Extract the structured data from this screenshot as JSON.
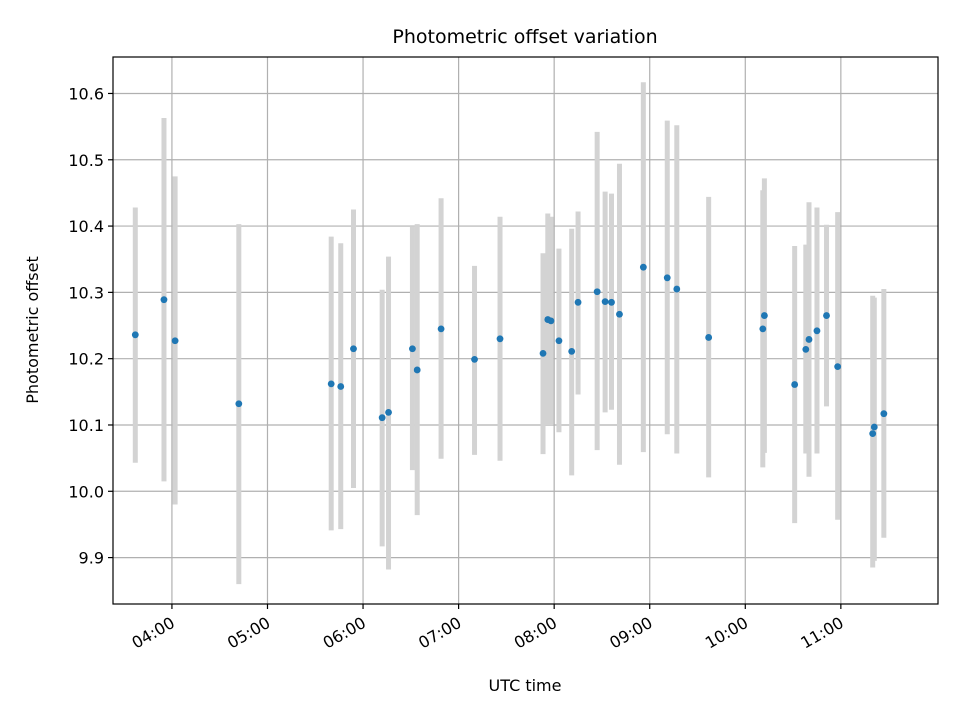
{
  "chart_data": {
    "type": "scatter",
    "title": "Photometric offset variation",
    "xlabel": "UTC time",
    "ylabel": "Photometric offset",
    "x_axis": "time",
    "xlim": [
      "03:23",
      "12:01"
    ],
    "ylim": [
      9.83,
      10.655
    ],
    "grid": true,
    "x_ticks": [
      "04:00",
      "05:00",
      "06:00",
      "07:00",
      "08:00",
      "09:00",
      "10:00",
      "11:00"
    ],
    "y_ticks": [
      "9.9",
      "10.0",
      "10.1",
      "10.2",
      "10.3",
      "10.4",
      "10.5",
      "10.6"
    ],
    "colors": {
      "points": "#1f77b4",
      "error_bars": "#d3d3d3",
      "grid": "#b0b0b0"
    },
    "series": [
      {
        "points": [
          {
            "x": "03:37",
            "y": 10.236,
            "yerr_low": 10.043,
            "yerr_high": 10.428
          },
          {
            "x": "03:55",
            "y": 10.289,
            "yerr_low": 10.015,
            "yerr_high": 10.563
          },
          {
            "x": "04:02",
            "y": 10.227,
            "yerr_low": 9.98,
            "yerr_high": 10.475
          },
          {
            "x": "04:42",
            "y": 10.132,
            "yerr_low": 9.86,
            "yerr_high": 10.403
          },
          {
            "x": "05:40",
            "y": 10.162,
            "yerr_low": 9.941,
            "yerr_high": 10.384
          },
          {
            "x": "05:46",
            "y": 10.158,
            "yerr_low": 9.943,
            "yerr_high": 10.374
          },
          {
            "x": "05:54",
            "y": 10.215,
            "yerr_low": 10.005,
            "yerr_high": 10.425
          },
          {
            "x": "06:12",
            "y": 10.111,
            "yerr_low": 9.917,
            "yerr_high": 10.304
          },
          {
            "x": "06:16",
            "y": 10.119,
            "yerr_low": 9.882,
            "yerr_high": 10.354
          },
          {
            "x": "06:31",
            "y": 10.215,
            "yerr_low": 10.032,
            "yerr_high": 10.4
          },
          {
            "x": "06:34",
            "y": 10.183,
            "yerr_low": 9.964,
            "yerr_high": 10.403
          },
          {
            "x": "06:49",
            "y": 10.245,
            "yerr_low": 10.049,
            "yerr_high": 10.442
          },
          {
            "x": "07:10",
            "y": 10.199,
            "yerr_low": 10.055,
            "yerr_high": 10.34
          },
          {
            "x": "07:26",
            "y": 10.23,
            "yerr_low": 10.046,
            "yerr_high": 10.414
          },
          {
            "x": "07:53",
            "y": 10.208,
            "yerr_low": 10.056,
            "yerr_high": 10.359
          },
          {
            "x": "07:56",
            "y": 10.259,
            "yerr_low": 10.1,
            "yerr_high": 10.419
          },
          {
            "x": "07:58",
            "y": 10.257,
            "yerr_low": 10.1,
            "yerr_high": 10.414
          },
          {
            "x": "08:03",
            "y": 10.227,
            "yerr_low": 10.089,
            "yerr_high": 10.366
          },
          {
            "x": "08:11",
            "y": 10.211,
            "yerr_low": 10.024,
            "yerr_high": 10.396
          },
          {
            "x": "08:15",
            "y": 10.285,
            "yerr_low": 10.146,
            "yerr_high": 10.422
          },
          {
            "x": "08:27",
            "y": 10.301,
            "yerr_low": 10.062,
            "yerr_high": 10.542
          },
          {
            "x": "08:32",
            "y": 10.286,
            "yerr_low": 10.119,
            "yerr_high": 10.452
          },
          {
            "x": "08:36",
            "y": 10.285,
            "yerr_low": 10.123,
            "yerr_high": 10.449
          },
          {
            "x": "08:41",
            "y": 10.267,
            "yerr_low": 10.04,
            "yerr_high": 10.494
          },
          {
            "x": "08:56",
            "y": 10.338,
            "yerr_low": 10.059,
            "yerr_high": 10.617
          },
          {
            "x": "09:11",
            "y": 10.322,
            "yerr_low": 10.086,
            "yerr_high": 10.559
          },
          {
            "x": "09:17",
            "y": 10.305,
            "yerr_low": 10.057,
            "yerr_high": 10.552
          },
          {
            "x": "09:37",
            "y": 10.232,
            "yerr_low": 10.021,
            "yerr_high": 10.444
          },
          {
            "x": "10:11",
            "y": 10.245,
            "yerr_low": 10.036,
            "yerr_high": 10.454
          },
          {
            "x": "10:12",
            "y": 10.265,
            "yerr_low": 10.058,
            "yerr_high": 10.472
          },
          {
            "x": "10:31",
            "y": 10.161,
            "yerr_low": 9.952,
            "yerr_high": 10.37
          },
          {
            "x": "10:38",
            "y": 10.214,
            "yerr_low": 10.057,
            "yerr_high": 10.372
          },
          {
            "x": "10:40",
            "y": 10.229,
            "yerr_low": 10.022,
            "yerr_high": 10.436
          },
          {
            "x": "10:45",
            "y": 10.242,
            "yerr_low": 10.057,
            "yerr_high": 10.428
          },
          {
            "x": "10:51",
            "y": 10.265,
            "yerr_low": 10.128,
            "yerr_high": 10.402
          },
          {
            "x": "10:58",
            "y": 10.188,
            "yerr_low": 9.957,
            "yerr_high": 10.421
          },
          {
            "x": "11:20",
            "y": 10.087,
            "yerr_low": 9.885,
            "yerr_high": 10.295
          },
          {
            "x": "11:21",
            "y": 10.097,
            "yerr_low": 9.895,
            "yerr_high": 10.292
          },
          {
            "x": "11:27",
            "y": 10.117,
            "yerr_low": 9.93,
            "yerr_high": 10.305
          }
        ]
      }
    ]
  }
}
